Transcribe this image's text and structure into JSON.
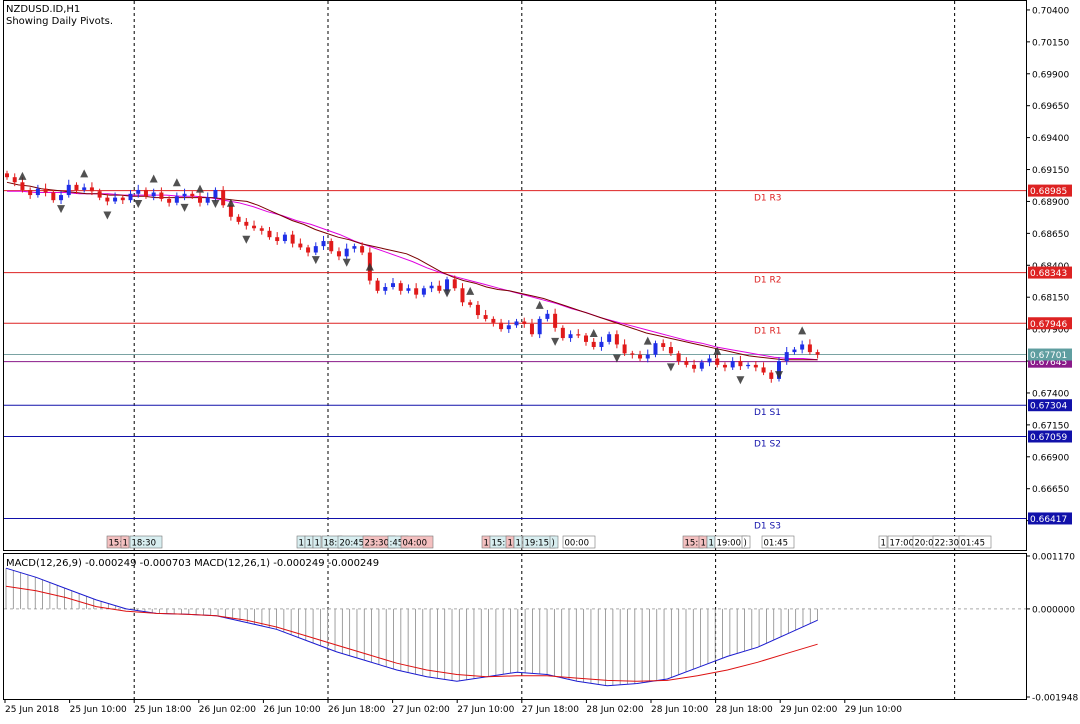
{
  "header": {
    "symbol": "NZDUSD.ID,H1",
    "note": "Showing Daily Pivots."
  },
  "colors": {
    "bull": "#1f2fe6",
    "bear": "#e01a1a",
    "ma_fast": "#7a0000",
    "ma_slow": "#e000e0",
    "pivot_res": "#dd2222",
    "pivot_sup": "#1111aa",
    "macd_hist": "#888888",
    "macd_line": "#1a1ad0",
    "signal_line": "#dd1111",
    "grid": "#000000"
  },
  "macd_panel": {
    "label": "MACD(12,26,9) -0.000249 -0.000703 MACD(12,26,1) -0.000249 -0.000249"
  },
  "session_boxes": [
    {
      "text": "15:",
      "x": 107,
      "color": "#f4c0c0"
    },
    {
      "text": "1",
      "x": 121,
      "color": "#f4c0c0"
    },
    {
      "text": "18:30",
      "x": 130,
      "color": "#d8eef0"
    },
    {
      "text": "1",
      "x": 297,
      "color": "#d8eef0"
    },
    {
      "text": "1",
      "x": 305,
      "color": "#d8eef0"
    },
    {
      "text": "1",
      "x": 313,
      "color": "#d8eef0"
    },
    {
      "text": "18:",
      "x": 322,
      "color": "#d8eef0"
    },
    {
      "text": "20:45",
      "x": 338,
      "color": "#d8eef0"
    },
    {
      "text": "23:30",
      "x": 363,
      "color": "#f4c0c0"
    },
    {
      "text": ":45",
      "x": 388,
      "color": "#d8eef0"
    },
    {
      "text": "04:00",
      "x": 401,
      "color": "#f4c0c0"
    },
    {
      "text": "1",
      "x": 482,
      "color": "#f4c0c0"
    },
    {
      "text": "15:",
      "x": 490,
      "color": "#d8eef0"
    },
    {
      "text": "1",
      "x": 506,
      "color": "#f4c0c0"
    },
    {
      "text": "1",
      "x": 514,
      "color": "#d8eef0"
    },
    {
      "text": "19:15",
      "x": 523,
      "color": "#d8eef0"
    },
    {
      "text": ")",
      "x": 550,
      "color": "#d8eef0"
    },
    {
      "text": "00:00",
      "x": 563,
      "color": "#ffffff"
    },
    {
      "text": "15:",
      "x": 683,
      "color": "#f4c0c0"
    },
    {
      "text": "1",
      "x": 699,
      "color": "#f4c0c0"
    },
    {
      "text": "1",
      "x": 707,
      "color": "#d8eef0"
    },
    {
      "text": "19:00",
      "x": 715,
      "color": "#ffffff"
    },
    {
      "text": ")",
      "x": 742,
      "color": "#ffffff"
    },
    {
      "text": "01:45",
      "x": 762,
      "color": "#ffffff"
    },
    {
      "text": "1",
      "x": 879,
      "color": "#ffffff"
    },
    {
      "text": "17:00",
      "x": 888,
      "color": "#ffffff"
    },
    {
      "text": "20:0",
      "x": 913,
      "color": "#ffffff"
    },
    {
      "text": "22:30",
      "x": 933,
      "color": "#ffffff"
    },
    {
      "text": "01:45",
      "x": 959,
      "color": "#ffffff"
    }
  ],
  "chart_data": {
    "type": "candlestick",
    "title": "NZDUSD.ID,H1",
    "price_axis": {
      "ticks": [
        "0.70400",
        "0.70150",
        "0.69900",
        "0.69650",
        "0.69400",
        "0.69150",
        "0.68900",
        "0.68650",
        "0.68400",
        "0.68150",
        "0.67900",
        "0.67650",
        "0.67400",
        "0.67150",
        "0.66900",
        "0.66650",
        "0.66400"
      ],
      "range": [
        0.6617,
        0.7047
      ]
    },
    "time_axis": {
      "labels": [
        "25 Jun 2018",
        "25 Jun 10:00",
        "25 Jun 18:00",
        "26 Jun 02:00",
        "26 Jun 10:00",
        "26 Jun 18:00",
        "27 Jun 02:00",
        "27 Jun 10:00",
        "27 Jun 18:00",
        "28 Jun 02:00",
        "28 Jun 10:00",
        "28 Jun 18:00",
        "29 Jun 02:00",
        "29 Jun 10:00"
      ]
    },
    "day_separators": [
      "25 Jun 18:00",
      "26 Jun 18:00",
      "27 Jun 18:00",
      "28 Jun 18:00",
      "29 Jun 18:00"
    ],
    "pivots": [
      {
        "name": "D1 R3",
        "value": 0.68985,
        "kind": "resistance"
      },
      {
        "name": "D1 R2",
        "value": 0.68343,
        "kind": "resistance"
      },
      {
        "name": "D1 R1",
        "value": 0.67946,
        "kind": "resistance"
      },
      {
        "name": "",
        "value": 0.67645,
        "kind": "pivot"
      },
      {
        "name": "D1 S1",
        "value": 0.67304,
        "kind": "support"
      },
      {
        "name": "D1 S2",
        "value": 0.67059,
        "kind": "support"
      },
      {
        "name": "D1 S3",
        "value": 0.66417,
        "kind": "support"
      }
    ],
    "current_price": {
      "bid": "0.67701",
      "pivot_tag": "0.67645"
    },
    "candles": [
      0.6909,
      0.6905,
      0.6899,
      0.6895,
      0.69,
      0.6897,
      0.6891,
      0.6895,
      0.6903,
      0.6899,
      0.6901,
      0.6898,
      0.6893,
      0.689,
      0.6893,
      0.6891,
      0.6896,
      0.6899,
      0.6894,
      0.6897,
      0.6892,
      0.6889,
      0.6894,
      0.6896,
      0.6894,
      0.6889,
      0.6893,
      0.6899,
      0.6887,
      0.6878,
      0.6874,
      0.6871,
      0.6869,
      0.6867,
      0.6862,
      0.6859,
      0.6864,
      0.6857,
      0.6854,
      0.685,
      0.6855,
      0.6859,
      0.6851,
      0.6847,
      0.6853,
      0.6855,
      0.685,
      0.6828,
      0.682,
      0.6823,
      0.6826,
      0.682,
      0.6822,
      0.6817,
      0.6822,
      0.6824,
      0.682,
      0.6829,
      0.6822,
      0.6811,
      0.6809,
      0.6801,
      0.6798,
      0.6795,
      0.679,
      0.6793,
      0.6796,
      0.6794,
      0.6786,
      0.6798,
      0.6802,
      0.6791,
      0.6783,
      0.6786,
      0.6785,
      0.678,
      0.6776,
      0.678,
      0.6786,
      0.6778,
      0.6771,
      0.677,
      0.6767,
      0.677,
      0.6779,
      0.6776,
      0.6771,
      0.6765,
      0.6762,
      0.6759,
      0.6764,
      0.6767,
      0.6762,
      0.676,
      0.6765,
      0.6761,
      0.6762,
      0.676,
      0.6756,
      0.6751,
      0.6765,
      0.6772,
      0.6774,
      0.6778,
      0.6772,
      0.677
    ],
    "ma_fast": [
      0.6905,
      0.6903,
      0.6902,
      0.69,
      0.6899,
      0.6898,
      0.6897,
      0.6896,
      0.6896,
      0.6895,
      0.6895,
      0.6894,
      0.6894,
      0.6893,
      0.6893,
      0.6893,
      0.6893,
      0.6893,
      0.6893,
      0.6892,
      0.6891,
      0.689,
      0.6887,
      0.6883,
      0.6879,
      0.6875,
      0.6872,
      0.6868,
      0.6865,
      0.6862,
      0.686,
      0.6857,
      0.6855,
      0.6853,
      0.6851,
      0.6849,
      0.6845,
      0.684,
      0.6835,
      0.6831,
      0.6828,
      0.6826,
      0.6823,
      0.6821,
      0.682,
      0.6818,
      0.6816,
      0.6814,
      0.6811,
      0.6808,
      0.6805,
      0.6802,
      0.6799,
      0.6796,
      0.6793,
      0.679,
      0.6787,
      0.6785,
      0.6783,
      0.6781,
      0.6779,
      0.6777,
      0.6775,
      0.6773,
      0.6771,
      0.6769,
      0.6768,
      0.6767,
      0.6766,
      0.6766,
      0.6766,
      0.6766
    ],
    "ma_slow": [
      0.6898,
      0.6898,
      0.6897,
      0.6897,
      0.6897,
      0.6896,
      0.6896,
      0.6896,
      0.6895,
      0.6895,
      0.6895,
      0.6895,
      0.6894,
      0.6894,
      0.6893,
      0.6891,
      0.6889,
      0.6886,
      0.6882,
      0.6879,
      0.6875,
      0.6872,
      0.6868,
      0.6864,
      0.6859,
      0.6855,
      0.6851,
      0.6847,
      0.6843,
      0.6838,
      0.6834,
      0.6831,
      0.6828,
      0.6825,
      0.6822,
      0.6819,
      0.6816,
      0.6813,
      0.681,
      0.6806,
      0.6803,
      0.6799,
      0.6796,
      0.6793,
      0.679,
      0.6787,
      0.6784,
      0.6781,
      0.6779,
      0.6776,
      0.6774,
      0.6772,
      0.677,
      0.6768,
      0.6767,
      0.6767,
      0.6766
    ],
    "macd": {
      "ticks": [
        "0.001170",
        "0.000000",
        "-0.001948"
      ],
      "range": [
        -0.001948,
        0.00117
      ],
      "histogram": [
        0.0009,
        0.0007,
        0.00045,
        0.0002,
        0.0,
        -0.0001,
        -0.00012,
        -0.00015,
        -0.0003,
        -0.00045,
        -0.0007,
        -0.00095,
        -0.00115,
        -0.00135,
        -0.0015,
        -0.0016,
        -0.0015,
        -0.0014,
        -0.00145,
        -0.0016,
        -0.0017,
        -0.00165,
        -0.00155,
        -0.0013,
        -0.00105,
        -0.00085,
        -0.00055,
        -0.00025
      ],
      "signal": [
        0.0005,
        0.0004,
        0.00025,
        5e-05,
        -5e-05,
        -0.0001,
        -0.00012,
        -0.00015,
        -0.00025,
        -0.0004,
        -0.0006,
        -0.0008,
        -0.001,
        -0.0012,
        -0.00135,
        -0.00145,
        -0.0015,
        -0.00148,
        -0.00148,
        -0.00153,
        -0.00158,
        -0.0016,
        -0.00158,
        -0.00148,
        -0.00135,
        -0.00118,
        -0.00098,
        -0.00078
      ]
    }
  }
}
